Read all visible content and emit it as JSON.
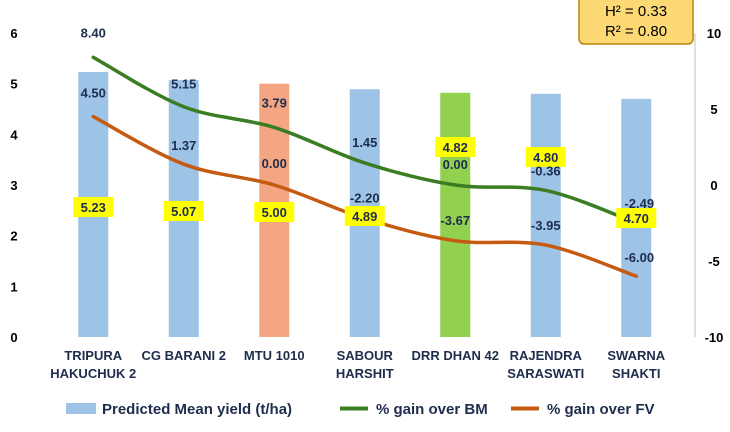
{
  "chart_data": {
    "type": "bar",
    "categories": [
      [
        "TRIPURA",
        "HAKUCHUK 2"
      ],
      [
        "CG BARANI 2"
      ],
      [
        "MTU 1010"
      ],
      [
        "SABOUR",
        "HARSHIT"
      ],
      [
        "DRR DHAN 42"
      ],
      [
        "RAJENDRA",
        "SARASWATI"
      ],
      [
        "SWARNA",
        "SHAKTI"
      ]
    ],
    "series": [
      {
        "name": "Predicted Mean yield (t/ha)",
        "type": "bar",
        "axis": "left",
        "values": [
          5.23,
          5.07,
          5.0,
          4.89,
          4.82,
          4.8,
          4.7
        ],
        "labels": [
          "5.23",
          "5.07",
          "5.00",
          "4.89",
          "4.82",
          "4.80",
          "4.70"
        ],
        "colors": [
          "#9dc3e6",
          "#9dc3e6",
          "#f4a683",
          "#9dc3e6",
          "#92d050",
          "#9dc3e6",
          "#9dc3e6"
        ]
      },
      {
        "name": "% gain over BM",
        "type": "line",
        "axis": "right",
        "color": "#3a7d22",
        "values": [
          8.4,
          5.15,
          3.79,
          1.45,
          0.0,
          -0.36,
          -2.49
        ],
        "labels": [
          "8.40",
          "5.15",
          "3.79",
          "1.45",
          "0.00",
          "-0.36",
          "-2.49"
        ]
      },
      {
        "name": "% gain over FV",
        "type": "line",
        "axis": "right",
        "color": "#c55a11",
        "values": [
          4.5,
          1.37,
          0.0,
          -2.2,
          -3.67,
          -3.95,
          -6.0
        ],
        "labels": [
          "4.50",
          "1.37",
          "0.00",
          "-2.20",
          "-3.67",
          "-3.95",
          "-6.00"
        ]
      }
    ],
    "y_left": {
      "ylim": [
        0,
        6
      ],
      "ticks": [
        "0",
        "1",
        "2",
        "3",
        "4",
        "5",
        "6"
      ]
    },
    "y_right": {
      "ylim": [
        -10,
        10
      ],
      "ticks": [
        "-10",
        "-5",
        "0",
        "5",
        "10"
      ]
    },
    "legend_position": "bottom",
    "grid": false,
    "stats_box": {
      "h2": "H² = 0.33",
      "r2": "R² = 0.80",
      "background": "#fdd976"
    },
    "label_highlight": "#ffff00"
  }
}
